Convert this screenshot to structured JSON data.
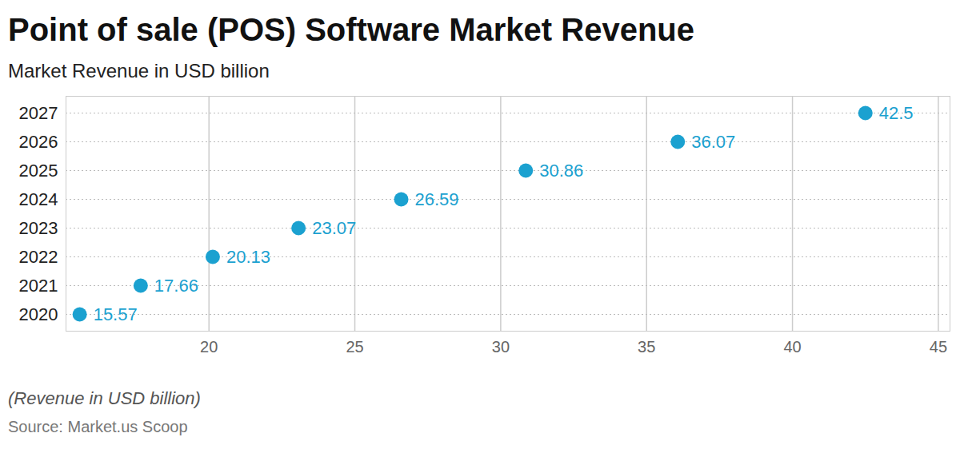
{
  "chart_data": {
    "type": "dot",
    "orientation": "horizontal",
    "title": "Point of sale (POS) Software Market Revenue",
    "subtitle": "Market Revenue in USD billion",
    "caption": "(Revenue in USD billion)",
    "source": "Source: Market.us Scoop",
    "categories": [
      "2027",
      "2026",
      "2025",
      "2024",
      "2023",
      "2022",
      "2021",
      "2020"
    ],
    "values": [
      42.5,
      36.07,
      30.86,
      26.59,
      23.07,
      20.13,
      17.66,
      15.57
    ],
    "color": "#1ba1d0",
    "xlim": [
      15.1,
      45.4
    ],
    "xticks": [
      20,
      25,
      30,
      35,
      40,
      45
    ],
    "grid": true,
    "data_labels": true
  }
}
